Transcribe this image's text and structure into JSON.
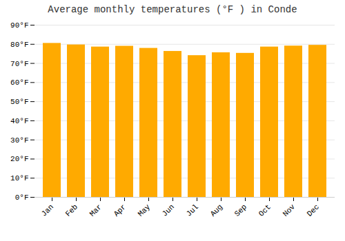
{
  "chart_data": {
    "type": "bar",
    "title": "Average monthly temperatures (°F ) in Conde",
    "categories": [
      "Jan",
      "Feb",
      "Mar",
      "Apr",
      "May",
      "Jun",
      "Jul",
      "Aug",
      "Sep",
      "Oct",
      "Nov",
      "Dec"
    ],
    "values": [
      80.5,
      79.7,
      78.6,
      79.0,
      77.9,
      76.3,
      74.1,
      75.6,
      75.3,
      78.6,
      79.1,
      79.5
    ],
    "color": "#ffaa00",
    "ylim": [
      0,
      90
    ],
    "yticks": [
      {
        "value": 0,
        "label": "0°F"
      },
      {
        "value": 10,
        "label": "10°F"
      },
      {
        "value": 20,
        "label": "20°F"
      },
      {
        "value": 30,
        "label": "30°F"
      },
      {
        "value": 40,
        "label": "40°F"
      },
      {
        "value": 50,
        "label": "50°F"
      },
      {
        "value": 60,
        "label": "60°F"
      },
      {
        "value": 70,
        "label": "70°F"
      },
      {
        "value": 80,
        "label": "80°F"
      },
      {
        "value": 90,
        "label": "90°F"
      }
    ],
    "grid": true
  }
}
